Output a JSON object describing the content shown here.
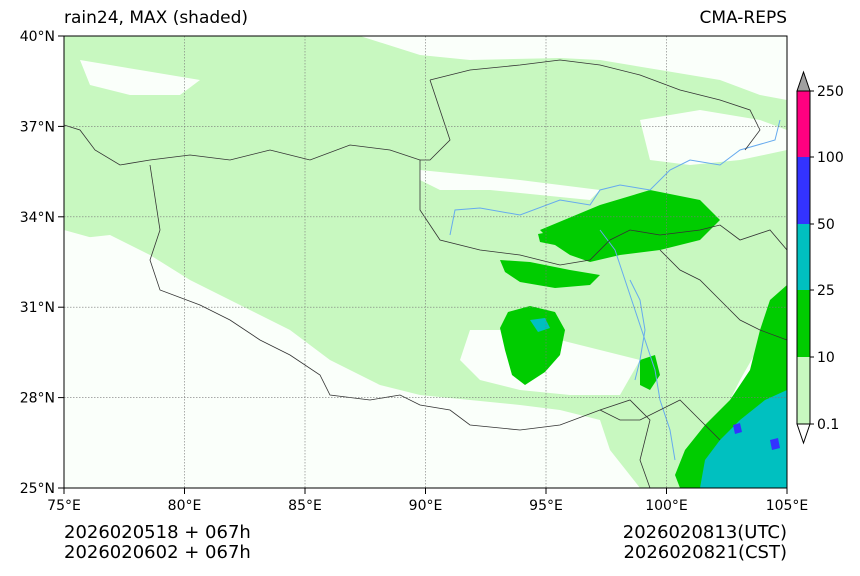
{
  "title": {
    "left": "rain24, MAX (shaded)",
    "right": "CMA-REPS"
  },
  "axes": {
    "lat_labels": [
      "40°N",
      "37°N",
      "34°N",
      "31°N",
      "28°N",
      "25°N"
    ],
    "lon_labels": [
      "75°E",
      "80°E",
      "85°E",
      "90°E",
      "95°E",
      "100°E",
      "105°E"
    ]
  },
  "colorbar": {
    "labels": [
      "250",
      "100",
      "50",
      "25",
      "10",
      "0.1"
    ],
    "colors": {
      "over": "#a0a0a0",
      "100_250": "#ff0080",
      "50_100": "#3333ff",
      "25_50": "#00c0c0",
      "10_25": "#00cc00",
      "0.1_10": "#c8f8c0"
    }
  },
  "footer": {
    "left_line1": "2026020518  +  067h",
    "left_line2": "2026020602  +  067h",
    "right_line1": "2026020813(UTC)",
    "right_line2": "2026020821(CST)"
  }
}
